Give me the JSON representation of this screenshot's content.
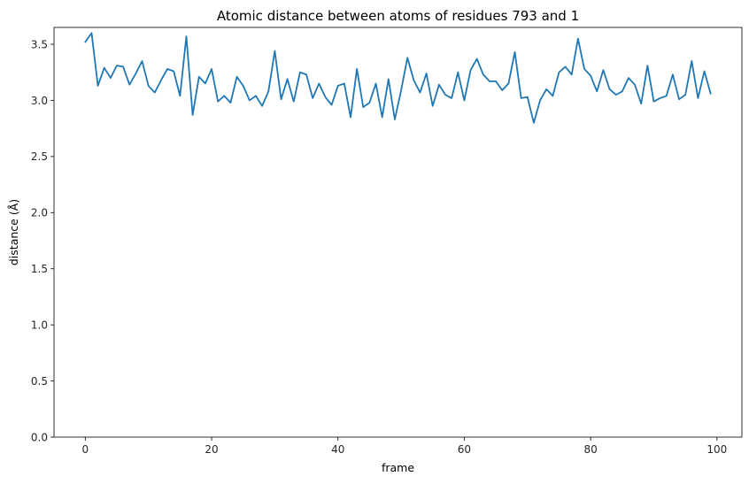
{
  "chart_data": {
    "type": "line",
    "title": "Atomic distance between atoms of residues 793 and 1",
    "xlabel": "frame",
    "ylabel": "distance (Å)",
    "xlim": [
      -4.95,
      103.95
    ],
    "ylim": [
      0,
      3.65
    ],
    "xticks": [
      0,
      20,
      40,
      60,
      80,
      100
    ],
    "yticks": [
      0.0,
      0.5,
      1.0,
      1.5,
      2.0,
      2.5,
      3.0,
      3.5
    ],
    "ytick_labels": [
      "0.0",
      "0.5",
      "1.0",
      "1.5",
      "2.0",
      "2.5",
      "3.0",
      "3.5"
    ],
    "grid": false,
    "series": [
      {
        "color": "#1f77b4",
        "x": [
          0,
          1,
          2,
          3,
          4,
          5,
          6,
          7,
          8,
          9,
          10,
          11,
          12,
          13,
          14,
          15,
          16,
          17,
          18,
          19,
          20,
          21,
          22,
          23,
          24,
          25,
          26,
          27,
          28,
          29,
          30,
          31,
          32,
          33,
          34,
          35,
          36,
          37,
          38,
          39,
          40,
          41,
          42,
          43,
          44,
          45,
          46,
          47,
          48,
          49,
          50,
          51,
          52,
          53,
          54,
          55,
          56,
          57,
          58,
          59,
          60,
          61,
          62,
          63,
          64,
          65,
          66,
          67,
          68,
          69,
          70,
          71,
          72,
          73,
          74,
          75,
          76,
          77,
          78,
          79,
          80,
          81,
          82,
          83,
          84,
          85,
          86,
          87,
          88,
          89,
          90,
          91,
          92,
          93,
          94,
          95,
          96,
          97,
          98,
          99
        ],
        "values": [
          3.52,
          3.6,
          3.13,
          3.29,
          3.2,
          3.31,
          3.3,
          3.14,
          3.24,
          3.35,
          3.13,
          3.07,
          3.18,
          3.28,
          3.26,
          3.04,
          3.57,
          2.87,
          3.21,
          3.15,
          3.28,
          2.99,
          3.04,
          2.98,
          3.21,
          3.13,
          3.0,
          3.04,
          2.95,
          3.08,
          3.44,
          3.01,
          3.19,
          2.99,
          3.25,
          3.23,
          3.02,
          3.15,
          3.03,
          2.96,
          3.13,
          3.15,
          2.85,
          3.28,
          2.94,
          2.98,
          3.15,
          2.85,
          3.19,
          2.83,
          3.09,
          3.38,
          3.18,
          3.07,
          3.24,
          2.95,
          3.14,
          3.05,
          3.02,
          3.25,
          3.0,
          3.27,
          3.37,
          3.23,
          3.17,
          3.17,
          3.09,
          3.15,
          3.43,
          3.02,
          3.03,
          2.8,
          3.0,
          3.1,
          3.04,
          3.25,
          3.3,
          3.23,
          3.55,
          3.28,
          3.22,
          3.08,
          3.27,
          3.1,
          3.05,
          3.08,
          3.2,
          3.14,
          2.97,
          3.31,
          2.99,
          3.02,
          3.04,
          3.23,
          3.01,
          3.05,
          3.35,
          3.02,
          3.26,
          3.06
        ]
      }
    ]
  }
}
